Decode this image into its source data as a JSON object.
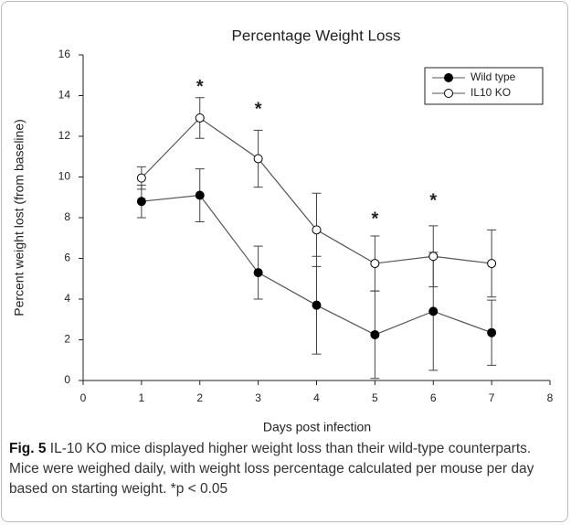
{
  "chart_data": {
    "type": "line",
    "title": "Percentage Weight Loss",
    "xlabel": "Days post infection",
    "ylabel": "Percent weight lost (from baseline)",
    "x": [
      1,
      2,
      3,
      4,
      5,
      6,
      7
    ],
    "series": [
      {
        "name": "Wild type",
        "color": "#000000",
        "marker_fill": "#000000",
        "line_color": "#555555",
        "values": [
          8.8,
          9.1,
          5.3,
          3.7,
          2.25,
          3.4,
          2.35
        ],
        "errors": [
          0.8,
          1.3,
          1.3,
          2.4,
          2.15,
          2.9,
          1.6
        ]
      },
      {
        "name": "IL10 KO",
        "color": "#000000",
        "marker_fill": "#ffffff",
        "line_color": "#555555",
        "values": [
          9.95,
          12.9,
          10.9,
          7.4,
          5.75,
          6.1,
          5.75
        ],
        "errors": [
          0.55,
          1.0,
          1.4,
          1.8,
          1.35,
          1.5,
          1.65
        ]
      }
    ],
    "annotations": [
      {
        "text": "*",
        "x": 2,
        "y": 14.4
      },
      {
        "text": "*",
        "x": 3,
        "y": 13.3
      },
      {
        "text": "*",
        "x": 5,
        "y": 7.9
      },
      {
        "text": "*",
        "x": 6,
        "y": 8.8
      }
    ],
    "xlim": [
      0,
      8
    ],
    "xticks": [
      0,
      1,
      2,
      3,
      4,
      5,
      6,
      7,
      8
    ],
    "ylim": [
      0,
      16
    ],
    "yticks": [
      0,
      2,
      4,
      6,
      8,
      10,
      12,
      14,
      16
    ],
    "legend": "upper right"
  },
  "caption": {
    "label": "Fig. 5",
    "text": "IL-10 KO mice displayed higher weight loss than their wild-type counterparts. Mice were weighed daily, with weight loss percentage calculated per mouse per day based on starting weight.",
    "note": "*p < 0.05"
  }
}
